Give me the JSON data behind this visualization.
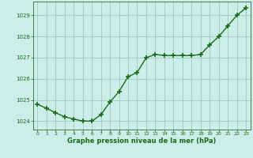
{
  "x": [
    0,
    1,
    2,
    3,
    4,
    5,
    6,
    7,
    8,
    9,
    10,
    11,
    12,
    13,
    14,
    15,
    16,
    17,
    18,
    19,
    20,
    21,
    22,
    23
  ],
  "y": [
    1024.8,
    1024.6,
    1024.4,
    1024.2,
    1024.1,
    1024.0,
    1024.0,
    1024.3,
    1024.9,
    1025.4,
    1026.1,
    1026.3,
    1027.0,
    1027.15,
    1027.1,
    1027.1,
    1027.1,
    1027.1,
    1027.15,
    1027.6,
    1028.0,
    1028.5,
    1029.0,
    1029.35
  ],
  "line_color": "#1a6b1a",
  "marker": "+",
  "marker_size": 4.5,
  "background_color": "#cceee8",
  "grid_color": "#99ccbb",
  "axis_label_color": "#1a6b1a",
  "tick_color": "#1a6b1a",
  "xlabel": "Graphe pression niveau de la mer (hPa)",
  "ylim": [
    1023.6,
    1029.65
  ],
  "xlim": [
    -0.5,
    23.5
  ],
  "yticks": [
    1024,
    1025,
    1026,
    1027,
    1028,
    1029
  ],
  "xticks": [
    0,
    1,
    2,
    3,
    4,
    5,
    6,
    7,
    8,
    9,
    10,
    11,
    12,
    13,
    14,
    15,
    16,
    17,
    18,
    19,
    20,
    21,
    22,
    23
  ],
  "linewidth": 1.0,
  "spine_color": "#336633"
}
